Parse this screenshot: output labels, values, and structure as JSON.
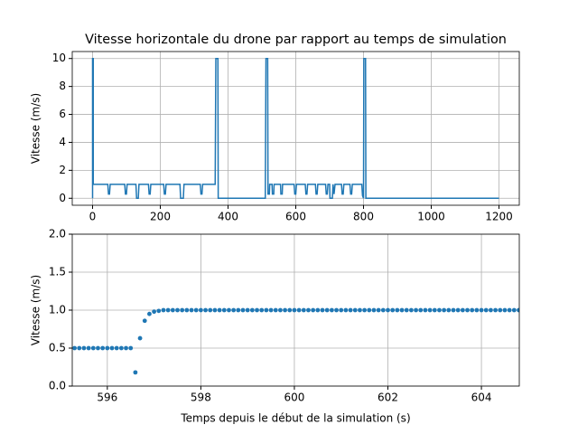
{
  "chart_data": [
    {
      "type": "line",
      "title": "Vitesse horizontale du drone par rapport au temps de simulation",
      "ylabel": "Vitesse (m/s)",
      "color": "#1f77b4",
      "grid": true,
      "xlim": [
        -60,
        1260
      ],
      "ylim": [
        -0.5,
        10.5
      ],
      "xticks": [
        0,
        200,
        400,
        600,
        800,
        1000,
        1200
      ],
      "yticks": [
        0,
        2,
        4,
        6,
        8,
        10
      ],
      "x": [
        0,
        0,
        2,
        2,
        45,
        47,
        50,
        52,
        95,
        97,
        100,
        102,
        128,
        130,
        135,
        137,
        165,
        167,
        170,
        172,
        210,
        212,
        215,
        217,
        258,
        260,
        268,
        270,
        318,
        320,
        323,
        325,
        362,
        364,
        370,
        371,
        510,
        512,
        517,
        518,
        522,
        523,
        530,
        531,
        535,
        536,
        555,
        556,
        560,
        561,
        595,
        597,
        600,
        602,
        628,
        630,
        633,
        635,
        658,
        660,
        663,
        665,
        688,
        690,
        693,
        695,
        700,
        701,
        708,
        710,
        713,
        716,
        735,
        737,
        740,
        742,
        760,
        762,
        765,
        767,
        795,
        797,
        800,
        801,
        806,
        807,
        1200
      ],
      "values": [
        0,
        10,
        10,
        1,
        1,
        0.3,
        0.3,
        1,
        1,
        0.3,
        0.3,
        1,
        1,
        0,
        0,
        1,
        1,
        0.3,
        0.3,
        1,
        1,
        0.3,
        0.3,
        1,
        1,
        0,
        0,
        1,
        1,
        0.3,
        0.3,
        1,
        1,
        10,
        10,
        0,
        0,
        10,
        10,
        0.3,
        0.3,
        1,
        1,
        0.3,
        0.3,
        1,
        1,
        0.3,
        0.3,
        1,
        1,
        0.3,
        0.3,
        1,
        1,
        0.3,
        0.3,
        1,
        1,
        0.3,
        0.3,
        1,
        1,
        0.3,
        0.3,
        1,
        1,
        0,
        0,
        1,
        0.3,
        1,
        1,
        0.3,
        0.3,
        1,
        1,
        0.3,
        0.3,
        1,
        1,
        0.2,
        0,
        10,
        10,
        0,
        0
      ]
    },
    {
      "type": "scatter",
      "xlabel": "Temps depuis le début de la simulation (s)",
      "ylabel": "Vitesse (m/s)",
      "color": "#1f77b4",
      "grid": true,
      "xlim": [
        595.25,
        604.81
      ],
      "ylim": [
        0,
        2
      ],
      "xticks": [
        596,
        598,
        600,
        602,
        604
      ],
      "yticks": [
        {
          "value": 0,
          "label": "0.0"
        },
        0.5,
        {
          "value": 1,
          "label": "1.0"
        },
        1.5,
        {
          "value": 2,
          "label": "2.0"
        }
      ],
      "x": [
        595.3,
        595.4,
        595.5,
        595.6,
        595.7,
        595.8,
        595.9,
        596.0,
        596.1,
        596.2,
        596.3,
        596.4,
        596.5,
        596.6,
        596.7,
        596.8,
        596.9,
        597.0,
        597.1,
        597.2,
        597.3,
        597.4,
        597.5,
        597.6,
        597.7,
        597.8,
        597.9,
        598.0,
        598.1,
        598.2,
        598.3,
        598.4,
        598.5,
        598.6,
        598.7,
        598.8,
        598.9,
        599.0,
        599.1,
        599.2,
        599.3,
        599.4,
        599.5,
        599.6,
        599.7,
        599.8,
        599.9,
        600.0,
        600.1,
        600.2,
        600.3,
        600.4,
        600.5,
        600.6,
        600.7,
        600.8,
        600.9,
        601.0,
        601.1,
        601.2,
        601.3,
        601.4,
        601.5,
        601.6,
        601.7,
        601.8,
        601.9,
        602.0,
        602.1,
        602.2,
        602.3,
        602.4,
        602.5,
        602.6,
        602.7,
        602.8,
        602.9,
        603.0,
        603.1,
        603.2,
        603.3,
        603.4,
        603.5,
        603.6,
        603.7,
        603.8,
        603.9,
        604.0,
        604.1,
        604.2,
        604.3,
        604.4,
        604.5,
        604.6,
        604.7,
        604.8
      ],
      "values": [
        0.5,
        0.5,
        0.5,
        0.5,
        0.5,
        0.5,
        0.5,
        0.5,
        0.5,
        0.5,
        0.5,
        0.5,
        0.5,
        0.18,
        0.63,
        0.86,
        0.95,
        0.98,
        0.99,
        1,
        1,
        1,
        1,
        1,
        1,
        1,
        1,
        1,
        1,
        1,
        1,
        1,
        1,
        1,
        1,
        1,
        1,
        1,
        1,
        1,
        1,
        1,
        1,
        1,
        1,
        1,
        1,
        1,
        1,
        1,
        1,
        1,
        1,
        1,
        1,
        1,
        1,
        1,
        1,
        1,
        1,
        1,
        1,
        1,
        1,
        1,
        1,
        1,
        1,
        1,
        1,
        1,
        1,
        1,
        1,
        1,
        1,
        1,
        1,
        1,
        1,
        1,
        1,
        1,
        1,
        1,
        1,
        1,
        1,
        1,
        1,
        1,
        1,
        1,
        1,
        1
      ]
    }
  ]
}
